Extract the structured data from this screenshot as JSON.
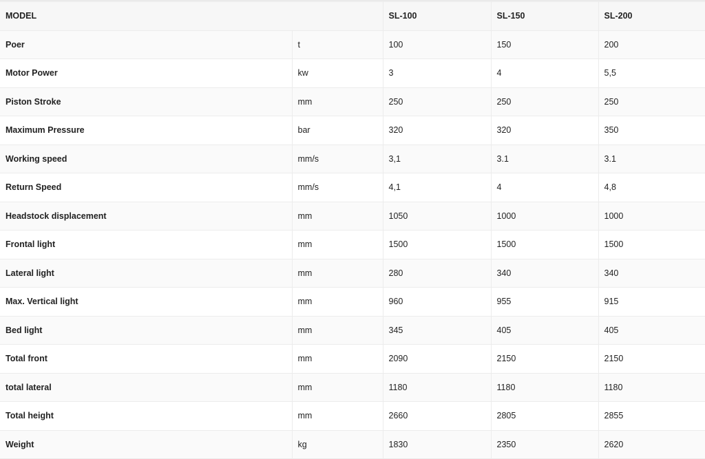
{
  "header": {
    "model": "MODEL",
    "models": [
      "SL-100",
      "SL-150",
      "SL-200"
    ]
  },
  "rows": [
    {
      "label": "Poer",
      "unit": "t",
      "values": [
        "100",
        "150",
        "200"
      ]
    },
    {
      "label": "Motor Power",
      "unit": "kw",
      "values": [
        "3",
        "4",
        "5,5"
      ]
    },
    {
      "label": "Piston Stroke",
      "unit": "mm",
      "values": [
        "250",
        "250",
        "250"
      ]
    },
    {
      "label": "Maximum Pressure",
      "unit": "bar",
      "values": [
        "320",
        "320",
        "350"
      ]
    },
    {
      "label": "Working speed",
      "unit": "mm/s",
      "values": [
        "3,1",
        "3.1",
        "3.1"
      ]
    },
    {
      "label": "Return Speed",
      "unit": "mm/s",
      "values": [
        "4,1",
        "4",
        "4,8"
      ]
    },
    {
      "label": "Headstock displacement",
      "unit": "mm",
      "values": [
        "1050",
        "1000",
        "1000"
      ]
    },
    {
      "label": "Frontal light",
      "unit": "mm",
      "values": [
        "1500",
        "1500",
        "1500"
      ]
    },
    {
      "label": "Lateral light",
      "unit": "mm",
      "values": [
        "280",
        "340",
        "340"
      ]
    },
    {
      "label": "Max. Vertical light",
      "unit": "mm",
      "values": [
        "960",
        "955",
        "915"
      ]
    },
    {
      "label": "Bed light",
      "unit": "mm",
      "values": [
        "345",
        "405",
        "405"
      ]
    },
    {
      "label": "Total front",
      "unit": "mm",
      "values": [
        "2090",
        "2150",
        "2150"
      ]
    },
    {
      "label": "total lateral",
      "unit": "mm",
      "values": [
        "1180",
        "1180",
        "1180"
      ]
    },
    {
      "label": "Total height",
      "unit": "mm",
      "values": [
        "2660",
        "2805",
        "2855"
      ]
    },
    {
      "label": "Weight",
      "unit": "kg",
      "values": [
        "1830",
        "2350",
        "2620"
      ]
    }
  ]
}
